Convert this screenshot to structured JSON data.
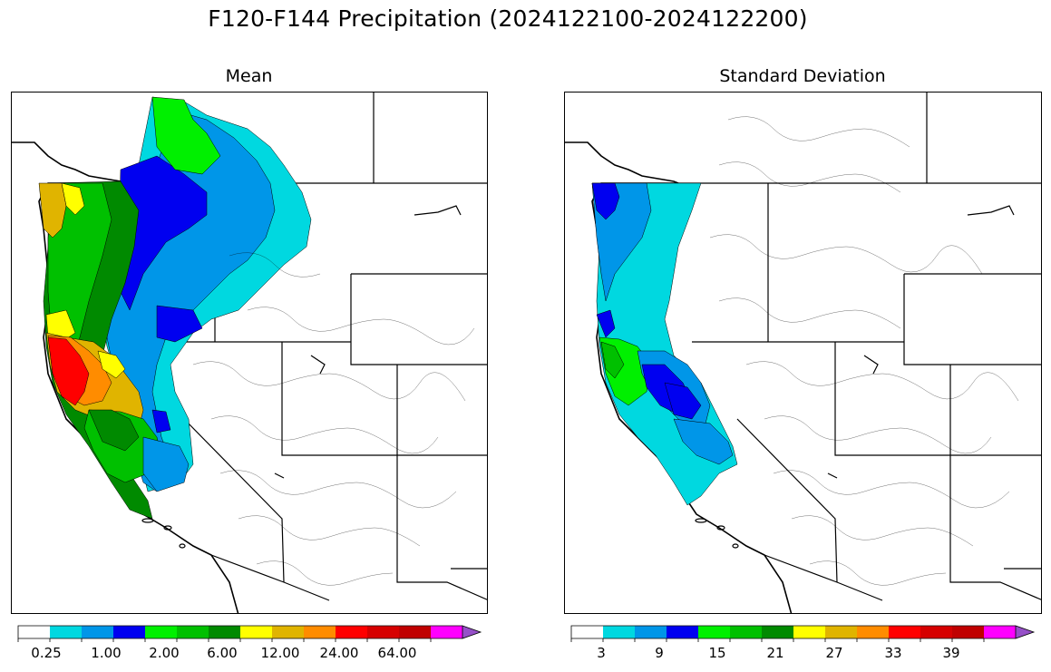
{
  "title": "F120-F144 Precipitation (2024122100-2024122200)",
  "panels": {
    "mean": {
      "title": "Mean",
      "colorbar_labels": [
        "0.25",
        "1.00",
        "2.00",
        "6.00",
        "12.00",
        "24.00",
        "64.00"
      ]
    },
    "std": {
      "title": "Standard Deviation",
      "colorbar_labels": [
        "3",
        "9",
        "15",
        "21",
        "27",
        "33",
        "39"
      ]
    }
  },
  "colorbar_colors": [
    "#ffffff",
    "#00d8e0",
    "#0096e8",
    "#0000f0",
    "#00f000",
    "#00c000",
    "#008a00",
    "#ffff00",
    "#e0b400",
    "#ff8c00",
    "#ff0000",
    "#d60000",
    "#c00000",
    "#ff00ff",
    "#9650c8"
  ]
}
